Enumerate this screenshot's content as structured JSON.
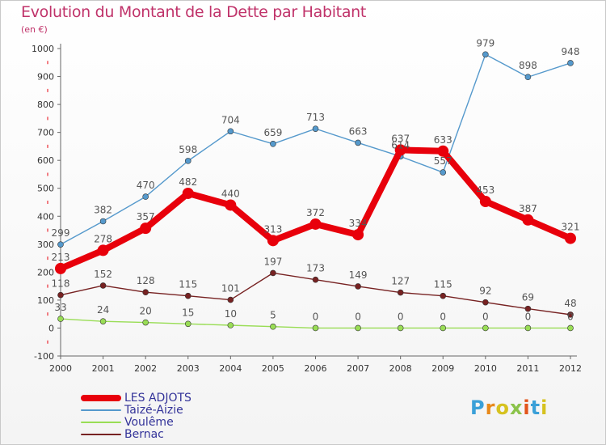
{
  "chart_data": {
    "type": "line",
    "title": "Evolution du Montant de la Dette par Habitant",
    "subtitle": "(en €)",
    "x": [
      2000,
      2001,
      2002,
      2003,
      2004,
      2005,
      2006,
      2007,
      2008,
      2009,
      2010,
      2011,
      2012
    ],
    "ylim": [
      -100,
      1000
    ],
    "yticks": [
      -100,
      0,
      100,
      200,
      300,
      400,
      500,
      600,
      700,
      800,
      900,
      1000
    ],
    "series": [
      {
        "name": "LES ADJOTS",
        "color": "#e8000b",
        "values": [
          213,
          278,
          357,
          482,
          440,
          313,
          372,
          334,
          637,
          633,
          453,
          387,
          321
        ]
      },
      {
        "name": "Taizé-Aizie",
        "color": "#5599cc",
        "values": [
          299,
          382,
          470,
          598,
          704,
          659,
          713,
          663,
          614,
          557,
          979,
          898,
          948
        ]
      },
      {
        "name": "Voulême",
        "color": "#99dd55",
        "values": [
          33,
          24,
          20,
          15,
          10,
          5,
          0,
          0,
          0,
          0,
          0,
          0,
          0
        ]
      },
      {
        "name": "Bernac",
        "color": "#772222",
        "values": [
          118,
          152,
          128,
          115,
          101,
          197,
          173,
          149,
          127,
          115,
          92,
          69,
          48
        ]
      }
    ],
    "grid": false,
    "legend": "bottom-left"
  },
  "logo": {
    "letters": [
      "P",
      "r",
      "o",
      "x",
      "i",
      "t",
      "i"
    ]
  }
}
